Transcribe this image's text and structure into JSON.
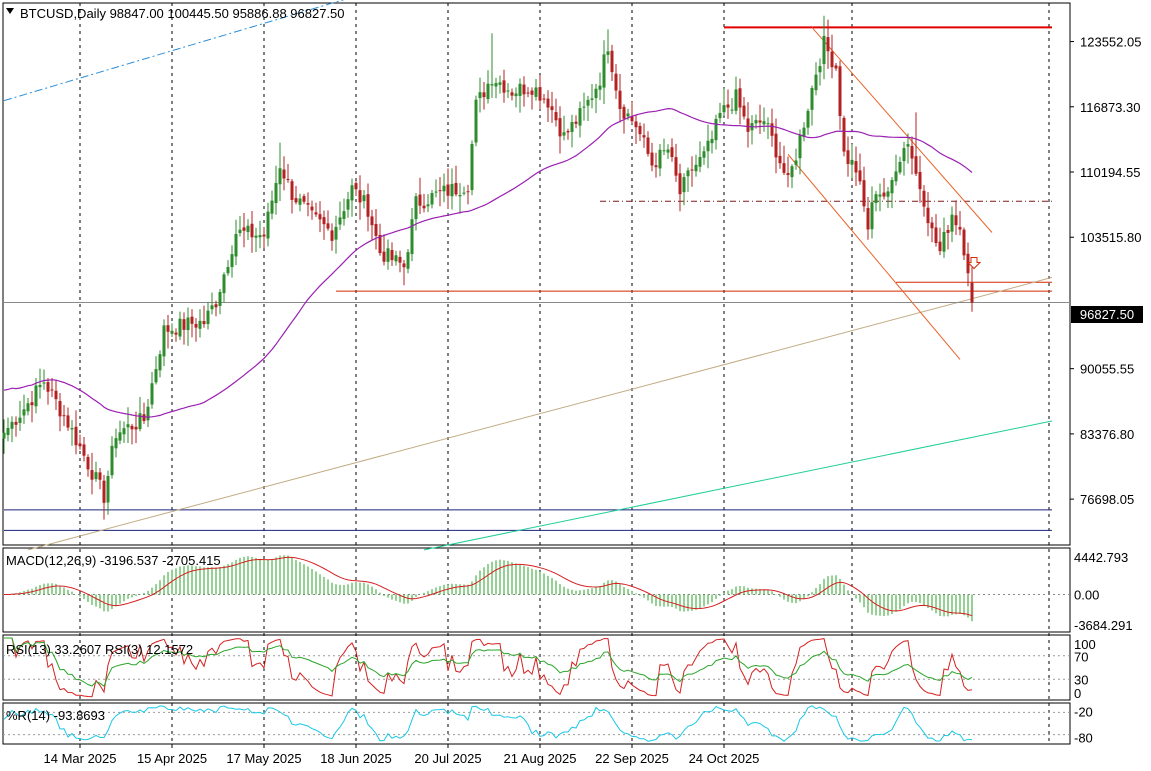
{
  "header": {
    "triangle_icon": "triangle-down-icon",
    "symbol_line": "BTCUSD,Daily  98847.00 100445.50 95886.88 96827.50"
  },
  "current_price_label": "96827.50",
  "colors": {
    "bull": "#2e8b2e",
    "bear": "#b22222",
    "ma": "#9a1fb2",
    "resistance": "#e00000",
    "support_h": "#d42a00",
    "channel": "#e8642a",
    "dashdot": "#7a1a1a",
    "trend_tan": "#c2ab83",
    "trend_green": "#1fcf95",
    "trend_blue_dash": "#2a8fd8",
    "navy": "#1a237e",
    "macd_hist": "#2aa52a",
    "macd_signal": "#d42020",
    "rsi_fast": "#d42020",
    "rsi_slow": "#2aa52a",
    "wr": "#19c8e6"
  },
  "chart_data": [
    {
      "type": "candlestick",
      "title": "BTCUSD,Daily",
      "ohlc_last": {
        "open": 98847.0,
        "high": 100445.5,
        "low": 95886.88,
        "close": 96827.5
      },
      "ylim": [
        72000,
        127500
      ],
      "y_ticks": [
        123552.05,
        116873.3,
        110194.55,
        103515.8,
        96827.5,
        90055.55,
        83376.8,
        76698.05
      ],
      "x_ticks": [
        "14 Mar 2025",
        "15 Apr 2025",
        "17 May 2025",
        "18 Jun 2025",
        "20 Jul 2025",
        "21 Aug 2025",
        "22 Sep 2025",
        "24 Oct 2025"
      ],
      "grid": "vertical dashed",
      "anchors": [
        {
          "day": 0,
          "close": 83500
        },
        {
          "day": 6,
          "close": 86500
        },
        {
          "day": 10,
          "close": 88800
        },
        {
          "day": 16,
          "close": 84500
        },
        {
          "day": 22,
          "close": 79500
        },
        {
          "day": 25,
          "close": 77000
        },
        {
          "day": 28,
          "close": 83500
        },
        {
          "day": 35,
          "close": 84800
        },
        {
          "day": 40,
          "close": 94000
        },
        {
          "day": 47,
          "close": 94700
        },
        {
          "day": 50,
          "close": 94800
        },
        {
          "day": 53,
          "close": 97000
        },
        {
          "day": 58,
          "close": 104000
        },
        {
          "day": 65,
          "close": 103700
        },
        {
          "day": 69,
          "close": 111000
        },
        {
          "day": 72,
          "close": 108000
        },
        {
          "day": 77,
          "close": 105500
        },
        {
          "day": 82,
          "close": 104000
        },
        {
          "day": 87,
          "close": 108500
        },
        {
          "day": 91,
          "close": 106500
        },
        {
          "day": 94,
          "close": 102000
        },
        {
          "day": 100,
          "close": 100500
        },
        {
          "day": 103,
          "close": 107000
        },
        {
          "day": 109,
          "close": 108000
        },
        {
          "day": 113,
          "close": 108500
        },
        {
          "day": 116,
          "close": 109000
        },
        {
          "day": 118,
          "close": 117000
        },
        {
          "day": 122,
          "close": 120000
        },
        {
          "day": 127,
          "close": 118500
        },
        {
          "day": 132,
          "close": 119000
        },
        {
          "day": 136,
          "close": 117500
        },
        {
          "day": 140,
          "close": 113800
        },
        {
          "day": 145,
          "close": 116500
        },
        {
          "day": 149,
          "close": 119800
        },
        {
          "day": 151,
          "close": 123300
        },
        {
          "day": 154,
          "close": 117000
        },
        {
          "day": 158,
          "close": 115000
        },
        {
          "day": 162,
          "close": 111000
        },
        {
          "day": 166,
          "close": 112500
        },
        {
          "day": 169,
          "close": 108000
        },
        {
          "day": 172,
          "close": 110500
        },
        {
          "day": 175,
          "close": 111800
        },
        {
          "day": 177,
          "close": 113500
        },
        {
          "day": 179,
          "close": 116000
        },
        {
          "day": 183,
          "close": 117800
        },
        {
          "day": 186,
          "close": 114500
        },
        {
          "day": 190,
          "close": 115500
        },
        {
          "day": 193,
          "close": 112500
        },
        {
          "day": 196,
          "close": 109000
        },
        {
          "day": 198,
          "close": 112000
        },
        {
          "day": 201,
          "close": 117000
        },
        {
          "day": 203,
          "close": 120500
        },
        {
          "day": 205,
          "close": 123300
        },
        {
          "day": 208,
          "close": 121000
        },
        {
          "day": 210,
          "close": 112000
        },
        {
          "day": 213,
          "close": 110500
        },
        {
          "day": 216,
          "close": 104500
        },
        {
          "day": 218,
          "close": 108500
        },
        {
          "day": 221,
          "close": 107500
        },
        {
          "day": 223,
          "close": 111000
        },
        {
          "day": 226,
          "close": 113500
        },
        {
          "day": 228,
          "close": 110000
        },
        {
          "day": 230,
          "close": 107500
        },
        {
          "day": 232,
          "close": 104000
        },
        {
          "day": 234,
          "close": 102000
        },
        {
          "day": 237,
          "close": 106000
        },
        {
          "day": 239,
          "close": 104500
        },
        {
          "day": 241,
          "close": 100500
        },
        {
          "day": 242,
          "close": 96827.5
        }
      ],
      "series": [
        {
          "name": "SMA",
          "role": "moving-average",
          "color": "#9a1fb2"
        }
      ],
      "levels": [
        {
          "kind": "resistance",
          "price": 125000,
          "from_day": 180,
          "to_day": 262
        },
        {
          "kind": "horizontal-dashdot",
          "price": 107200,
          "from_day": 149,
          "to_day": 262
        },
        {
          "kind": "support",
          "price": 98000,
          "from_day": 83,
          "to_day": 262
        },
        {
          "kind": "support-short",
          "price": 98900,
          "from_day": 223,
          "to_day": 262
        },
        {
          "kind": "navy",
          "price": 75600,
          "from_day": 0,
          "to_day": 262
        },
        {
          "kind": "navy",
          "price": 73500,
          "from_day": 0,
          "to_day": 262
        }
      ],
      "trendlines": [
        {
          "kind": "tan",
          "from": [
            6,
            71500
          ],
          "to": [
            262,
            99400
          ]
        },
        {
          "kind": "green",
          "from": [
            105,
            71500
          ],
          "to": [
            262,
            84700
          ]
        },
        {
          "kind": "blue-dash",
          "from": [
            0,
            117500
          ],
          "to": [
            115,
            131500
          ]
        },
        {
          "kind": "channel-upper",
          "from": [
            202,
            125000
          ],
          "to": [
            247,
            104000
          ]
        },
        {
          "kind": "channel-lower",
          "from": [
            196,
            112000
          ],
          "to": [
            239,
            91000
          ]
        }
      ],
      "arrow_annotation": {
        "day": 241,
        "price": 99800,
        "icon": "down-arrow-icon"
      }
    },
    {
      "type": "macd",
      "label": "MACD(12,26,9) -3196.537 -2705.415",
      "y_ticks": [
        "4442.793",
        "0.00",
        "-3684.291"
      ],
      "ylim": [
        -3684.291,
        4442.793
      ],
      "zero": 0,
      "series": [
        {
          "name": "histogram",
          "values_from": "computed"
        },
        {
          "name": "signal",
          "values_from": "computed"
        }
      ]
    },
    {
      "type": "rsi",
      "label": "RSI(13) 33.2607  RSI(3) 12.1572",
      "y_ticks": [
        "100",
        "70",
        "30",
        "0"
      ],
      "ylim": [
        0,
        100
      ],
      "levels": [
        70,
        30
      ]
    },
    {
      "type": "williams-r",
      "label": "%R(14) -93.8693",
      "y_ticks": [
        "-20",
        "-80"
      ],
      "ylim": [
        -100,
        0
      ],
      "levels": [
        -20,
        -80
      ]
    }
  ]
}
